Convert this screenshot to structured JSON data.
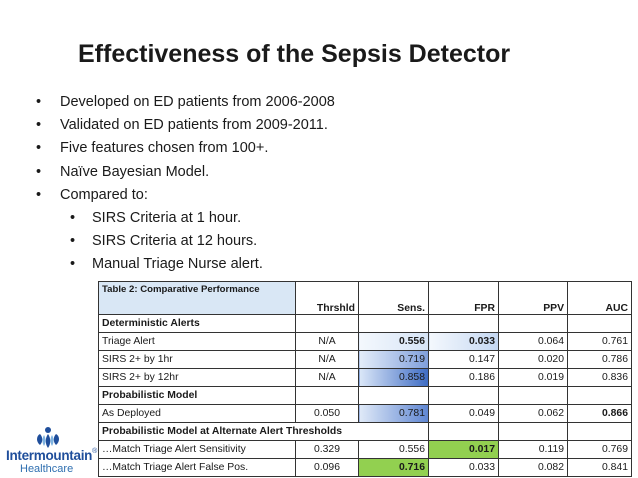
{
  "title": "Effectiveness of the Sepsis Detector",
  "bullets": [
    "Developed on ED patients from 2006-2008",
    "Validated on ED patients from 2009-2011.",
    "Five features chosen from 100+.",
    "Naïve Bayesian Model.",
    "Compared to:"
  ],
  "sub_bullets": [
    "SIRS Criteria at 1 hour.",
    "SIRS Criteria at 12 hours.",
    "Manual Triage Nurse alert."
  ],
  "bullet_glyph": "•",
  "table": {
    "caption": "Table 2: Comparative Performance",
    "headers": [
      "Thrshld",
      "Sens.",
      "FPR",
      "PPV",
      "AUC"
    ],
    "sections": {
      "deterministic": "Deterministic Alerts",
      "probabilistic": "Probabilistic Model",
      "alternate": "Probabilistic Model at Alternate Alert Thresholds"
    },
    "rows": [
      {
        "label": "Triage Alert",
        "thrshld": "N/A",
        "sens": "0.556",
        "fpr": "0.033",
        "ppv": "0.064",
        "auc": "0.761"
      },
      {
        "label": "SIRS 2+ by 1hr",
        "thrshld": "N/A",
        "sens": "0.719",
        "fpr": "0.147",
        "ppv": "0.020",
        "auc": "0.786"
      },
      {
        "label": "SIRS 2+ by 12hr",
        "thrshld": "N/A",
        "sens": "0.858",
        "fpr": "0.186",
        "ppv": "0.019",
        "auc": "0.836"
      },
      {
        "label": "As Deployed",
        "thrshld": "0.050",
        "sens": "0.781",
        "fpr": "0.049",
        "ppv": "0.062",
        "auc": "0.866"
      },
      {
        "label": "…Match Triage Alert Sensitivity",
        "thrshld": "0.329",
        "sens": "0.556",
        "fpr": "0.017",
        "ppv": "0.119",
        "auc": "0.769"
      },
      {
        "label": "…Match Triage Alert False Pos.",
        "thrshld": "0.096",
        "sens": "0.716",
        "fpr": "0.033",
        "ppv": "0.082",
        "auc": "0.841"
      }
    ]
  },
  "logo": {
    "line1": "Intermountain",
    "registered": "®",
    "line2": "Healthcare"
  },
  "colors": {
    "header_bg": "#d9e7f5",
    "grad_light": "#eaf1fb",
    "grad_dark": "#3e6cc4",
    "highlight_green": "#92d050",
    "logo_blue": "#1f4e9b"
  }
}
